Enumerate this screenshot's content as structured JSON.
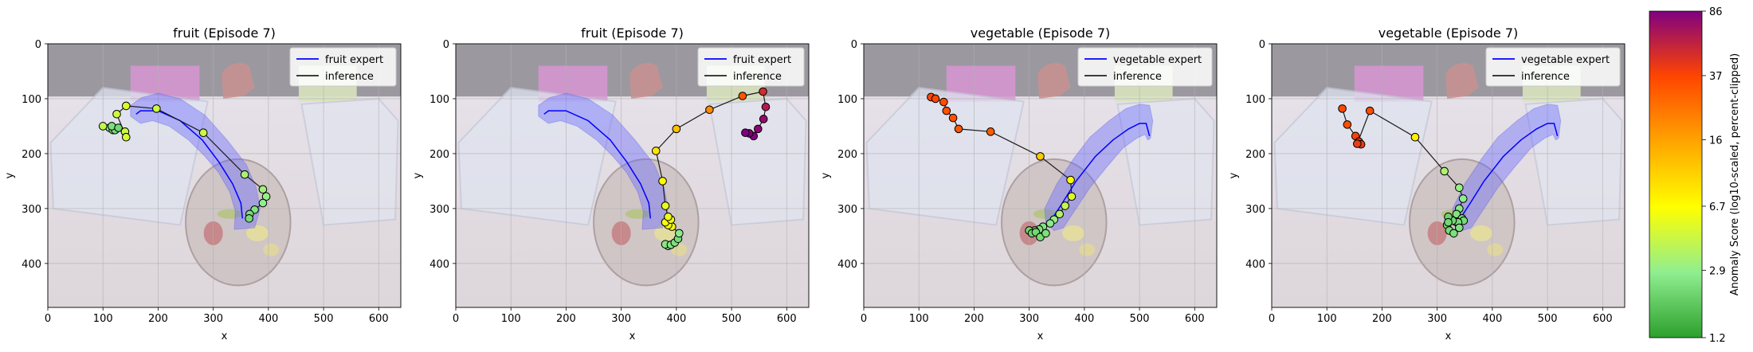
{
  "chart_data": [
    {
      "type": "scatter",
      "title": "fruit (Episode 7)",
      "xlabel": "x",
      "ylabel": "y",
      "xlim": [
        0,
        640
      ],
      "ylim": [
        480,
        0
      ],
      "xticks": [
        0,
        100,
        200,
        300,
        400,
        500,
        600
      ],
      "yticks": [
        0,
        100,
        200,
        300,
        400
      ],
      "grid": true,
      "legend": {
        "placement": "top-right",
        "entries": [
          "fruit expert",
          "inference"
        ]
      },
      "expert": {
        "name": "fruit expert",
        "color": "#0000ff",
        "line": [
          [
            160,
            128
          ],
          [
            168,
            122
          ],
          [
            200,
            122
          ],
          [
            240,
            140
          ],
          [
            280,
            175
          ],
          [
            310,
            215
          ],
          [
            335,
            255
          ],
          [
            350,
            290
          ],
          [
            353,
            318
          ]
        ],
        "band_upper": [
          [
            150,
            112
          ],
          [
            170,
            98
          ],
          [
            200,
            90
          ],
          [
            240,
            100
          ],
          [
            285,
            130
          ],
          [
            325,
            175
          ],
          [
            360,
            220
          ],
          [
            378,
            262
          ],
          [
            385,
            300
          ],
          [
            375,
            335
          ]
        ],
        "band_lower": [
          [
            338,
            338
          ],
          [
            340,
            305
          ],
          [
            330,
            270
          ],
          [
            310,
            235
          ],
          [
            285,
            205
          ],
          [
            255,
            175
          ],
          [
            220,
            150
          ],
          [
            190,
            140
          ],
          [
            168,
            145
          ],
          [
            150,
            132
          ]
        ]
      },
      "inference": {
        "name": "inference",
        "points": [
          {
            "x": 112,
            "y": 153,
            "s": 2.6
          },
          {
            "x": 118,
            "y": 157,
            "s": 2.5
          },
          {
            "x": 122,
            "y": 157,
            "s": 2.3
          },
          {
            "x": 116,
            "y": 150,
            "s": 2.4
          },
          {
            "x": 128,
            "y": 153,
            "s": 2.2
          },
          {
            "x": 100,
            "y": 150,
            "s": 4.2
          },
          {
            "x": 140,
            "y": 160,
            "s": 4.5
          },
          {
            "x": 142,
            "y": 170,
            "s": 4.8
          },
          {
            "x": 125,
            "y": 128,
            "s": 4.6
          },
          {
            "x": 142,
            "y": 113,
            "s": 5.0
          },
          {
            "x": 197,
            "y": 118,
            "s": 4.5
          },
          {
            "x": 282,
            "y": 162,
            "s": 4.4
          },
          {
            "x": 357,
            "y": 238,
            "s": 3.4
          },
          {
            "x": 390,
            "y": 265,
            "s": 3.2
          },
          {
            "x": 396,
            "y": 278,
            "s": 3.0
          },
          {
            "x": 390,
            "y": 290,
            "s": 2.8
          },
          {
            "x": 375,
            "y": 302,
            "s": 2.5
          },
          {
            "x": 366,
            "y": 310,
            "s": 2.4
          },
          {
            "x": 365,
            "y": 318,
            "s": 2.3
          }
        ]
      }
    },
    {
      "type": "scatter",
      "title": "fruit (Episode 7)",
      "xlabel": "x",
      "ylabel": "y",
      "xlim": [
        0,
        640
      ],
      "ylim": [
        480,
        0
      ],
      "xticks": [
        0,
        100,
        200,
        300,
        400,
        500,
        600
      ],
      "yticks": [
        0,
        100,
        200,
        300,
        400
      ],
      "grid": true,
      "legend": {
        "placement": "top-right",
        "entries": [
          "fruit expert",
          "inference"
        ]
      },
      "expert": {
        "name": "fruit expert",
        "color": "#0000ff",
        "line": [
          [
            160,
            128
          ],
          [
            168,
            122
          ],
          [
            200,
            122
          ],
          [
            240,
            140
          ],
          [
            280,
            175
          ],
          [
            310,
            215
          ],
          [
            335,
            255
          ],
          [
            350,
            290
          ],
          [
            353,
            318
          ]
        ],
        "band_upper": [
          [
            150,
            112
          ],
          [
            170,
            98
          ],
          [
            200,
            90
          ],
          [
            240,
            100
          ],
          [
            285,
            130
          ],
          [
            325,
            175
          ],
          [
            360,
            220
          ],
          [
            378,
            262
          ],
          [
            385,
            300
          ],
          [
            375,
            335
          ]
        ],
        "band_lower": [
          [
            338,
            338
          ],
          [
            340,
            305
          ],
          [
            330,
            270
          ],
          [
            310,
            235
          ],
          [
            285,
            205
          ],
          [
            255,
            175
          ],
          [
            220,
            150
          ],
          [
            190,
            140
          ],
          [
            168,
            145
          ],
          [
            150,
            132
          ]
        ]
      },
      "inference": {
        "name": "inference",
        "points": [
          {
            "x": 385,
            "y": 368,
            "s": 2.5
          },
          {
            "x": 380,
            "y": 365,
            "s": 2.6
          },
          {
            "x": 390,
            "y": 366,
            "s": 2.5
          },
          {
            "x": 397,
            "y": 362,
            "s": 2.4
          },
          {
            "x": 403,
            "y": 355,
            "s": 2.3
          },
          {
            "x": 405,
            "y": 345,
            "s": 2.7
          },
          {
            "x": 392,
            "y": 333,
            "s": 6.0
          },
          {
            "x": 385,
            "y": 330,
            "s": 6.5
          },
          {
            "x": 380,
            "y": 325,
            "s": 6.4
          },
          {
            "x": 390,
            "y": 320,
            "s": 6.2
          },
          {
            "x": 385,
            "y": 315,
            "s": 5.8
          },
          {
            "x": 380,
            "y": 295,
            "s": 5.5
          },
          {
            "x": 375,
            "y": 250,
            "s": 6.5
          },
          {
            "x": 363,
            "y": 195,
            "s": 8.5
          },
          {
            "x": 400,
            "y": 155,
            "s": 12
          },
          {
            "x": 460,
            "y": 120,
            "s": 20
          },
          {
            "x": 520,
            "y": 95,
            "s": 32
          },
          {
            "x": 557,
            "y": 87,
            "s": 50
          },
          {
            "x": 562,
            "y": 115,
            "s": 62
          },
          {
            "x": 558,
            "y": 137,
            "s": 75
          },
          {
            "x": 548,
            "y": 155,
            "s": 80
          },
          {
            "x": 540,
            "y": 168,
            "s": 85
          },
          {
            "x": 532,
            "y": 163,
            "s": 86
          },
          {
            "x": 525,
            "y": 162,
            "s": 86
          }
        ]
      }
    },
    {
      "type": "scatter",
      "title": "vegetable (Episode 7)",
      "xlabel": "x",
      "ylabel": "y",
      "xlim": [
        0,
        640
      ],
      "ylim": [
        480,
        0
      ],
      "xticks": [
        0,
        100,
        200,
        300,
        400,
        500,
        600
      ],
      "yticks": [
        0,
        100,
        200,
        300,
        400
      ],
      "grid": true,
      "legend": {
        "placement": "top-right",
        "entries": [
          "vegetable expert",
          "inference"
        ]
      },
      "expert": {
        "name": "vegetable expert",
        "color": "#0000ff",
        "line": [
          [
            342,
            318
          ],
          [
            360,
            290
          ],
          [
            385,
            250
          ],
          [
            420,
            205
          ],
          [
            452,
            175
          ],
          [
            480,
            155
          ],
          [
            500,
            145
          ],
          [
            512,
            145
          ],
          [
            518,
            168
          ]
        ],
        "band_upper": [
          [
            328,
            300
          ],
          [
            350,
            255
          ],
          [
            380,
            210
          ],
          [
            410,
            170
          ],
          [
            445,
            140
          ],
          [
            475,
            118
          ],
          [
            500,
            110
          ],
          [
            518,
            112
          ],
          [
            524,
            140
          ],
          [
            520,
            172
          ]
        ],
        "band_lower": [
          [
            515,
            175
          ],
          [
            510,
            165
          ],
          [
            495,
            172
          ],
          [
            470,
            190
          ],
          [
            440,
            225
          ],
          [
            410,
            262
          ],
          [
            385,
            300
          ],
          [
            362,
            335
          ],
          [
            345,
            340
          ],
          [
            330,
            325
          ]
        ]
      },
      "inference": {
        "name": "inference",
        "points": [
          {
            "x": 122,
            "y": 97,
            "s": 35
          },
          {
            "x": 130,
            "y": 100,
            "s": 36
          },
          {
            "x": 145,
            "y": 106,
            "s": 34
          },
          {
            "x": 150,
            "y": 122,
            "s": 33
          },
          {
            "x": 162,
            "y": 135,
            "s": 33
          },
          {
            "x": 172,
            "y": 155,
            "s": 32
          },
          {
            "x": 230,
            "y": 160,
            "s": 30
          },
          {
            "x": 320,
            "y": 205,
            "s": 11
          },
          {
            "x": 375,
            "y": 248,
            "s": 6.5
          },
          {
            "x": 377,
            "y": 278,
            "s": 5.0
          },
          {
            "x": 365,
            "y": 295,
            "s": 4.2
          },
          {
            "x": 355,
            "y": 310,
            "s": 3.6
          },
          {
            "x": 345,
            "y": 320,
            "s": 3.0
          },
          {
            "x": 338,
            "y": 327,
            "s": 2.7
          },
          {
            "x": 325,
            "y": 333,
            "s": 2.5
          },
          {
            "x": 318,
            "y": 338,
            "s": 2.4
          },
          {
            "x": 310,
            "y": 340,
            "s": 2.3
          },
          {
            "x": 300,
            "y": 340,
            "s": 2.2
          },
          {
            "x": 305,
            "y": 345,
            "s": 2.1
          },
          {
            "x": 312,
            "y": 343,
            "s": 2.2
          },
          {
            "x": 320,
            "y": 352,
            "s": 2.3
          },
          {
            "x": 330,
            "y": 345,
            "s": 2.4
          }
        ]
      }
    },
    {
      "type": "scatter",
      "title": "vegetable (Episode 7)",
      "xlabel": "x",
      "ylabel": "y",
      "xlim": [
        0,
        640
      ],
      "ylim": [
        480,
        0
      ],
      "xticks": [
        0,
        100,
        200,
        300,
        400,
        500,
        600
      ],
      "yticks": [
        0,
        100,
        200,
        300,
        400
      ],
      "grid": true,
      "legend": {
        "placement": "top-right",
        "entries": [
          "vegetable expert",
          "inference"
        ]
      },
      "expert": {
        "name": "vegetable expert",
        "color": "#0000ff",
        "line": [
          [
            342,
            318
          ],
          [
            360,
            290
          ],
          [
            385,
            250
          ],
          [
            420,
            205
          ],
          [
            452,
            175
          ],
          [
            480,
            155
          ],
          [
            500,
            145
          ],
          [
            512,
            145
          ],
          [
            518,
            168
          ]
        ],
        "band_upper": [
          [
            328,
            300
          ],
          [
            350,
            255
          ],
          [
            380,
            210
          ],
          [
            410,
            170
          ],
          [
            445,
            140
          ],
          [
            475,
            118
          ],
          [
            500,
            110
          ],
          [
            518,
            112
          ],
          [
            524,
            140
          ],
          [
            520,
            172
          ]
        ],
        "band_lower": [
          [
            515,
            175
          ],
          [
            510,
            165
          ],
          [
            495,
            172
          ],
          [
            470,
            190
          ],
          [
            440,
            225
          ],
          [
            410,
            262
          ],
          [
            385,
            300
          ],
          [
            362,
            335
          ],
          [
            345,
            340
          ],
          [
            330,
            325
          ]
        ]
      },
      "inference": {
        "name": "inference",
        "points": [
          {
            "x": 128,
            "y": 118,
            "s": 36
          },
          {
            "x": 137,
            "y": 147,
            "s": 34
          },
          {
            "x": 152,
            "y": 168,
            "s": 38
          },
          {
            "x": 158,
            "y": 178,
            "s": 40
          },
          {
            "x": 162,
            "y": 183,
            "s": 42
          },
          {
            "x": 155,
            "y": 182,
            "s": 41
          },
          {
            "x": 178,
            "y": 122,
            "s": 34
          },
          {
            "x": 260,
            "y": 170,
            "s": 7.5
          },
          {
            "x": 313,
            "y": 232,
            "s": 3.5
          },
          {
            "x": 340,
            "y": 262,
            "s": 3.0
          },
          {
            "x": 347,
            "y": 282,
            "s": 2.8
          },
          {
            "x": 340,
            "y": 300,
            "s": 2.6
          },
          {
            "x": 335,
            "y": 310,
            "s": 2.5
          },
          {
            "x": 345,
            "y": 318,
            "s": 2.4
          },
          {
            "x": 348,
            "y": 322,
            "s": 2.3
          },
          {
            "x": 338,
            "y": 325,
            "s": 2.3
          },
          {
            "x": 328,
            "y": 322,
            "s": 2.2
          },
          {
            "x": 320,
            "y": 315,
            "s": 2.1
          },
          {
            "x": 318,
            "y": 330,
            "s": 2.2
          },
          {
            "x": 322,
            "y": 340,
            "s": 2.3
          },
          {
            "x": 330,
            "y": 345,
            "s": 2.4
          },
          {
            "x": 340,
            "y": 335,
            "s": 2.5
          },
          {
            "x": 320,
            "y": 325,
            "s": 2.2
          }
        ]
      }
    }
  ],
  "colorbar": {
    "label": "Anomaly Score (log10-scaled, percent-clipped)",
    "min": 1.2,
    "max": 86,
    "ticks": [
      1.2,
      2.9,
      6.7,
      16,
      37,
      86
    ],
    "tick_labels": [
      "1.2",
      "2.9",
      "6.7",
      "16",
      "37",
      "86"
    ],
    "colors": [
      "#2ca02c",
      "#90ee90",
      "#ffff00",
      "#ffa500",
      "#ff4500",
      "#800080"
    ]
  }
}
